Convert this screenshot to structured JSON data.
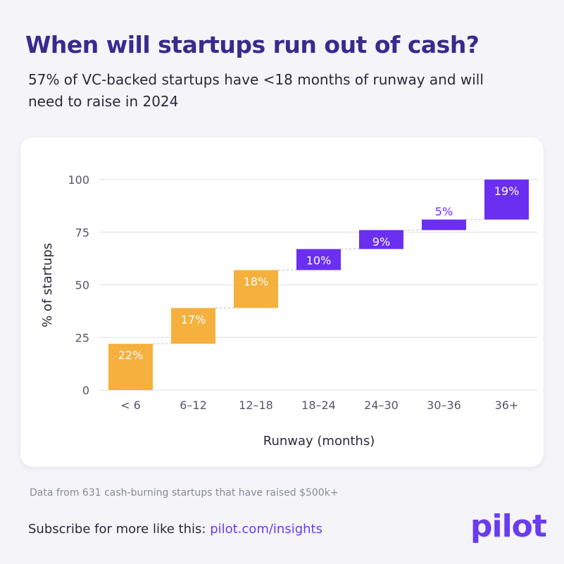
{
  "header": {
    "title": "When will startups run out of cash?",
    "subtitle": "57% of VC-backed startups have <18 months of runway and will need to raise in 2024"
  },
  "chart_data": {
    "type": "bar",
    "subtype": "waterfall",
    "xlabel": "Runway (months)",
    "ylabel": "% of startups",
    "ylim": [
      0,
      100
    ],
    "yticks": [
      0,
      25,
      50,
      75,
      100
    ],
    "categories": [
      "< 6",
      "6–12",
      "12–18",
      "18–24",
      "24–30",
      "30–36",
      "36+"
    ],
    "values": [
      22,
      17,
      18,
      10,
      9,
      5,
      19
    ],
    "labels": [
      "22%",
      "17%",
      "18%",
      "10%",
      "9%",
      "5%",
      "19%"
    ],
    "cumulative_start": [
      0,
      22,
      39,
      57,
      67,
      76,
      81
    ],
    "grid": true,
    "colors": {
      "short_runway": "#f5b03d",
      "long_runway": "#6a2ff0",
      "grid": "#dddde6",
      "connector": "#b8b8c8",
      "label_text": "#ffffff",
      "axis_text": "#555566"
    },
    "color_groups": [
      "short_runway",
      "short_runway",
      "short_runway",
      "long_runway",
      "long_runway",
      "long_runway",
      "long_runway"
    ]
  },
  "footer": {
    "note": "Data from 631 cash-burning startups that have raised $500k+",
    "subscribe_prefix": "Subscribe for more like this: ",
    "subscribe_link": "pilot.com/insights",
    "logo": "pilot"
  }
}
